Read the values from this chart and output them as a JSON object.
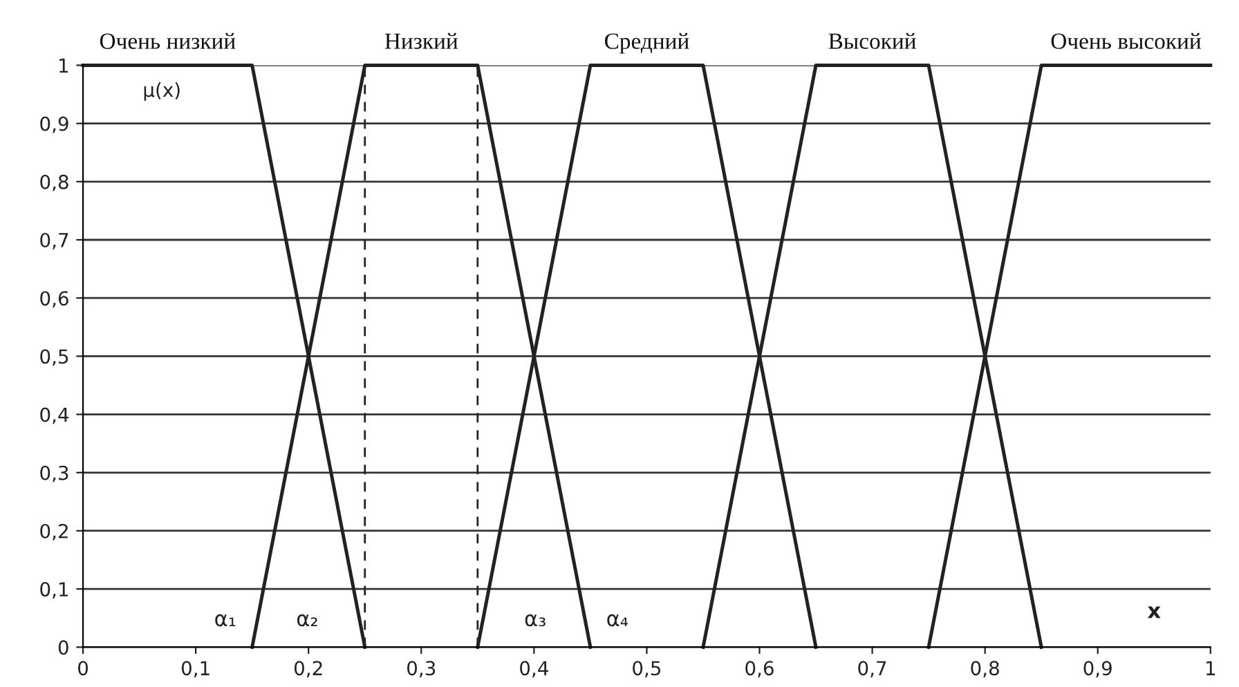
{
  "chart_data": {
    "type": "line",
    "xlabel": "x",
    "ylabel": "μ(x)",
    "series": [
      {
        "name": "Очень низкий",
        "color": "#222222",
        "x": [
          0,
          0.15,
          0.25
        ],
        "values": [
          1,
          1,
          0
        ]
      },
      {
        "name": "Низкий",
        "color": "#222222",
        "x": [
          0.15,
          0.25,
          0.35,
          0.45
        ],
        "values": [
          0,
          1,
          1,
          0
        ]
      },
      {
        "name": "Средний",
        "color": "#222222",
        "x": [
          0.35,
          0.45,
          0.55,
          0.65
        ],
        "values": [
          0,
          1,
          1,
          0
        ]
      },
      {
        "name": "Высокий",
        "color": "#222222",
        "x": [
          0.55,
          0.65,
          0.75,
          0.85
        ],
        "values": [
          0,
          1,
          1,
          0
        ]
      },
      {
        "name": "Очень высокий",
        "color": "#222222",
        "x": [
          0.75,
          0.85,
          1
        ],
        "values": [
          0,
          1,
          1
        ]
      }
    ],
    "ref_lines": [
      {
        "axis": "x",
        "value": 0.25,
        "label": null,
        "color": "#222222",
        "line_style": "dashed"
      },
      {
        "axis": "x",
        "value": 0.35,
        "label": null,
        "color": "#222222",
        "line_style": "dashed"
      }
    ],
    "annotations": [
      {
        "text": "α₁",
        "x": 0.15,
        "y": 0
      },
      {
        "text": "α₂",
        "x": 0.25,
        "y": 0
      },
      {
        "text": "α₃",
        "x": 0.35,
        "y": 0
      },
      {
        "text": "α₄",
        "x": 0.45,
        "y": 0
      }
    ],
    "xlim": [
      0,
      1
    ],
    "ylim": [
      0,
      1
    ],
    "xticks": [
      0,
      {
        "value": 0.1,
        "label": "0,1"
      },
      {
        "value": 0.2,
        "label": "0,2"
      },
      {
        "value": 0.3,
        "label": "0,3"
      },
      {
        "value": 0.4,
        "label": "0,4"
      },
      {
        "value": 0.5,
        "label": "0,5"
      },
      {
        "value": 0.6,
        "label": "0,6"
      },
      {
        "value": 0.7,
        "label": "0,7"
      },
      {
        "value": 0.8,
        "label": "0,8"
      },
      {
        "value": 0.9,
        "label": "0,9"
      },
      1
    ],
    "yticks": [
      0,
      {
        "value": 0.1,
        "label": "0,1"
      },
      {
        "value": 0.2,
        "label": "0,2"
      },
      {
        "value": 0.3,
        "label": "0,3"
      },
      {
        "value": 0.4,
        "label": "0,4"
      },
      {
        "value": 0.5,
        "label": "0,5"
      },
      {
        "value": 0.6,
        "label": "0,6"
      },
      {
        "value": 0.7,
        "label": "0,7"
      },
      {
        "value": 0.8,
        "label": "0,8"
      },
      {
        "value": 0.9,
        "label": "0,9"
      },
      1
    ],
    "grid": "y",
    "legend": false,
    "marker": "none",
    "line_style": "solid"
  }
}
